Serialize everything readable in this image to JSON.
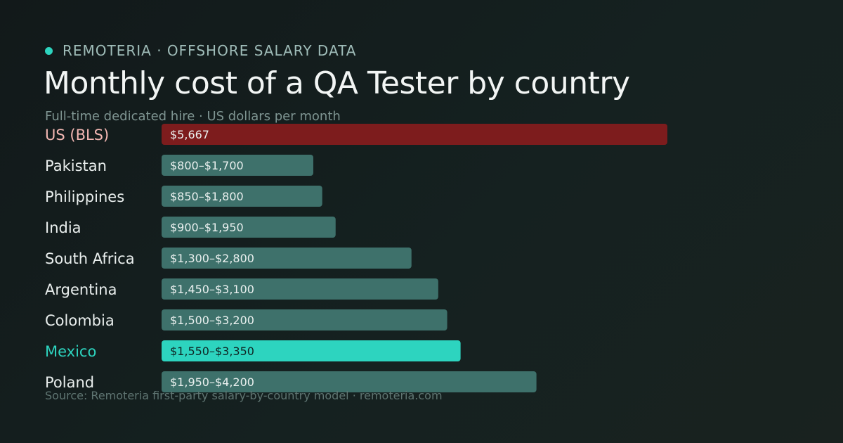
{
  "header": {
    "brand": "REMOTERIA · OFFSHORE SALARY DATA",
    "title": "Monthly cost of a QA Tester by country",
    "subtitle": "Full-time dedicated hire · US dollars per month"
  },
  "footer": {
    "source": "Source: Remoteria first-party salary-by-country model · remoteria.com"
  },
  "colors": {
    "benchmark": "#7d1c1d",
    "benchmark_label": "#f4b8b4",
    "highlight": "#2dd4bf",
    "default_bar": "#3e716b",
    "label": "#e9eeed"
  },
  "chart_data": {
    "type": "bar",
    "orientation": "horizontal",
    "title": "Monthly cost of a QA Tester by country",
    "subtitle": "Full-time dedicated hire · US dollars per month",
    "unit": "USD per month",
    "xlim": [
      0,
      5667
    ],
    "grid": false,
    "legend": "none",
    "categories": [
      "US (BLS)",
      "Pakistan",
      "Philippines",
      "India",
      "South Africa",
      "Argentina",
      "Colombia",
      "Mexico",
      "Poland"
    ],
    "values": [
      5667,
      1700,
      1800,
      1950,
      2800,
      3100,
      3200,
      3350,
      4200
    ],
    "ranges": [
      [
        5667,
        5667
      ],
      [
        800,
        1700
      ],
      [
        850,
        1800
      ],
      [
        900,
        1950
      ],
      [
        1300,
        2800
      ],
      [
        1450,
        3100
      ],
      [
        1500,
        3200
      ],
      [
        1550,
        3350
      ],
      [
        1950,
        4200
      ]
    ],
    "data_labels": [
      "$5,667",
      "$800–$1,700",
      "$850–$1,800",
      "$900–$1,950",
      "$1,300–$2,800",
      "$1,450–$3,100",
      "$1,500–$3,200",
      "$1,550–$3,350",
      "$1,950–$4,200"
    ],
    "highlight": {
      "US (BLS)": "benchmark",
      "Mexico": "highlight"
    }
  }
}
